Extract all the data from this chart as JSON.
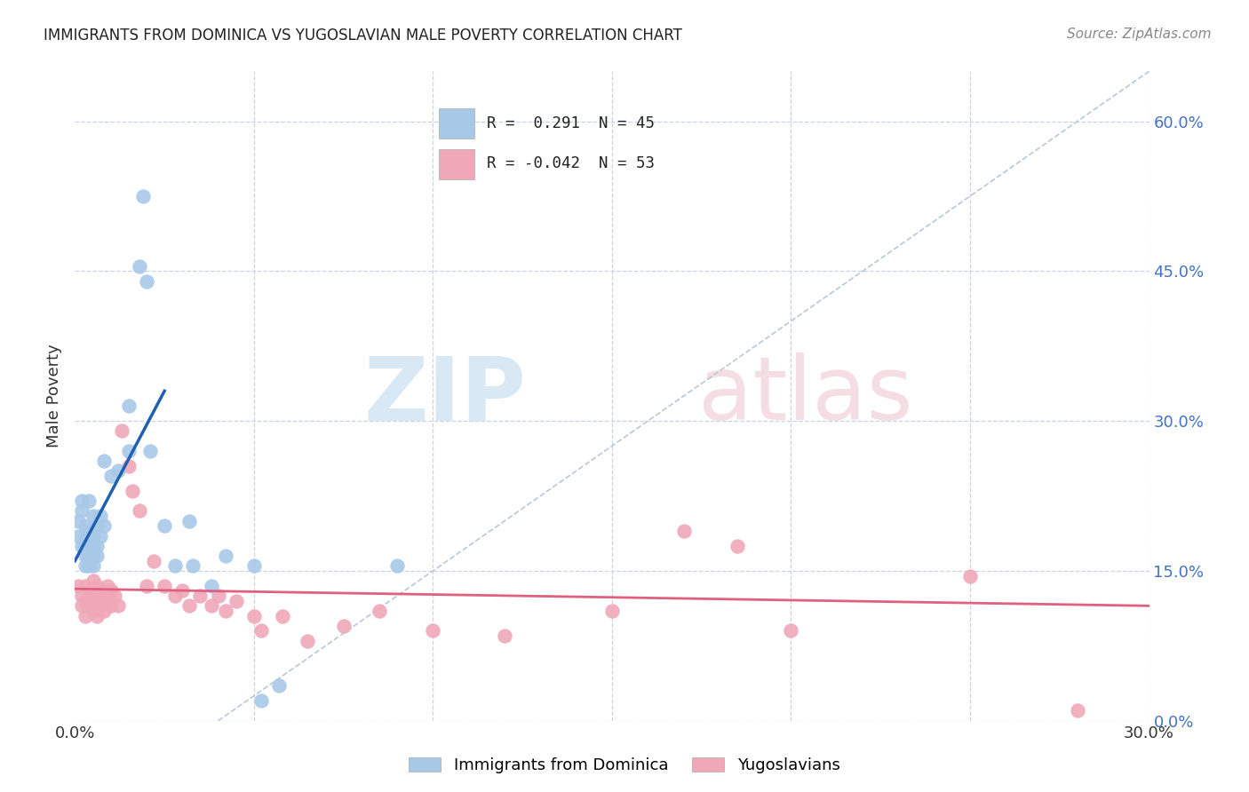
{
  "title": "IMMIGRANTS FROM DOMINICA VS YUGOSLAVIAN MALE POVERTY CORRELATION CHART",
  "source": "Source: ZipAtlas.com",
  "ylabel": "Male Poverty",
  "right_yticks": [
    0.0,
    0.15,
    0.3,
    0.45,
    0.6
  ],
  "right_ytick_labels": [
    "0.0%",
    "15.0%",
    "30.0%",
    "45.0%",
    "60.0%"
  ],
  "xlim": [
    0.0,
    0.3
  ],
  "ylim": [
    0.0,
    0.65
  ],
  "blue_color": "#a8c8e8",
  "pink_color": "#f0a8b8",
  "blue_line_color": "#2060b0",
  "pink_line_color": "#e06080",
  "diag_line_color": "#b8c8d8",
  "blue_scatter": [
    [
      0.001,
      0.2
    ],
    [
      0.001,
      0.185
    ],
    [
      0.002,
      0.22
    ],
    [
      0.002,
      0.175
    ],
    [
      0.002,
      0.21
    ],
    [
      0.003,
      0.195
    ],
    [
      0.003,
      0.185
    ],
    [
      0.003,
      0.175
    ],
    [
      0.003,
      0.165
    ],
    [
      0.003,
      0.155
    ],
    [
      0.004,
      0.22
    ],
    [
      0.004,
      0.19
    ],
    [
      0.004,
      0.175
    ],
    [
      0.004,
      0.165
    ],
    [
      0.004,
      0.155
    ],
    [
      0.005,
      0.205
    ],
    [
      0.005,
      0.185
    ],
    [
      0.005,
      0.175
    ],
    [
      0.005,
      0.165
    ],
    [
      0.005,
      0.155
    ],
    [
      0.006,
      0.195
    ],
    [
      0.006,
      0.175
    ],
    [
      0.006,
      0.165
    ],
    [
      0.007,
      0.205
    ],
    [
      0.007,
      0.185
    ],
    [
      0.008,
      0.26
    ],
    [
      0.008,
      0.195
    ],
    [
      0.01,
      0.245
    ],
    [
      0.012,
      0.25
    ],
    [
      0.015,
      0.27
    ],
    [
      0.015,
      0.315
    ],
    [
      0.018,
      0.455
    ],
    [
      0.019,
      0.525
    ],
    [
      0.02,
      0.44
    ],
    [
      0.021,
      0.27
    ],
    [
      0.025,
      0.195
    ],
    [
      0.028,
      0.155
    ],
    [
      0.032,
      0.2
    ],
    [
      0.033,
      0.155
    ],
    [
      0.038,
      0.135
    ],
    [
      0.042,
      0.165
    ],
    [
      0.05,
      0.155
    ],
    [
      0.052,
      0.02
    ],
    [
      0.057,
      0.035
    ],
    [
      0.09,
      0.155
    ]
  ],
  "pink_scatter": [
    [
      0.001,
      0.135
    ],
    [
      0.002,
      0.125
    ],
    [
      0.002,
      0.115
    ],
    [
      0.003,
      0.135
    ],
    [
      0.003,
      0.12
    ],
    [
      0.003,
      0.105
    ],
    [
      0.004,
      0.13
    ],
    [
      0.004,
      0.115
    ],
    [
      0.005,
      0.14
    ],
    [
      0.005,
      0.125
    ],
    [
      0.005,
      0.11
    ],
    [
      0.006,
      0.135
    ],
    [
      0.006,
      0.12
    ],
    [
      0.006,
      0.105
    ],
    [
      0.007,
      0.13
    ],
    [
      0.007,
      0.115
    ],
    [
      0.008,
      0.125
    ],
    [
      0.008,
      0.11
    ],
    [
      0.009,
      0.135
    ],
    [
      0.009,
      0.12
    ],
    [
      0.01,
      0.13
    ],
    [
      0.01,
      0.115
    ],
    [
      0.011,
      0.125
    ],
    [
      0.012,
      0.115
    ],
    [
      0.013,
      0.29
    ],
    [
      0.015,
      0.255
    ],
    [
      0.016,
      0.23
    ],
    [
      0.018,
      0.21
    ],
    [
      0.02,
      0.135
    ],
    [
      0.022,
      0.16
    ],
    [
      0.025,
      0.135
    ],
    [
      0.028,
      0.125
    ],
    [
      0.03,
      0.13
    ],
    [
      0.032,
      0.115
    ],
    [
      0.035,
      0.125
    ],
    [
      0.038,
      0.115
    ],
    [
      0.04,
      0.125
    ],
    [
      0.042,
      0.11
    ],
    [
      0.045,
      0.12
    ],
    [
      0.05,
      0.105
    ],
    [
      0.052,
      0.09
    ],
    [
      0.058,
      0.105
    ],
    [
      0.065,
      0.08
    ],
    [
      0.075,
      0.095
    ],
    [
      0.085,
      0.11
    ],
    [
      0.1,
      0.09
    ],
    [
      0.12,
      0.085
    ],
    [
      0.15,
      0.11
    ],
    [
      0.17,
      0.19
    ],
    [
      0.185,
      0.175
    ],
    [
      0.2,
      0.09
    ],
    [
      0.25,
      0.145
    ],
    [
      0.28,
      0.01
    ]
  ],
  "blue_line": [
    [
      0.0,
      0.16
    ],
    [
      0.025,
      0.33
    ]
  ],
  "pink_line": [
    [
      0.0,
      0.132
    ],
    [
      0.3,
      0.115
    ]
  ],
  "diag_line": [
    [
      0.04,
      0.0
    ],
    [
      0.3,
      0.65
    ]
  ]
}
